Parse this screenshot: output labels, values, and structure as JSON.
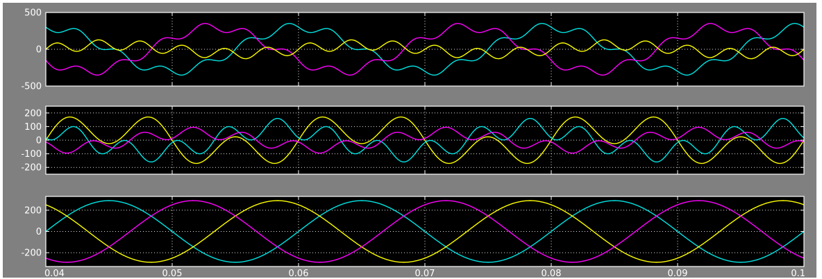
{
  "window": {
    "background": "#808080",
    "axes_background": "#000000",
    "axes_frame": "#ffffff",
    "grid_color": "#ffffff"
  },
  "chart_data": [
    {
      "type": "line",
      "xlim": [
        0.04,
        0.1
      ],
      "ylim": [
        -500,
        500
      ],
      "yticks": [
        500,
        0,
        -500
      ],
      "ytick_labels": [
        "500",
        "0",
        "-500"
      ],
      "xgrid": [
        0.04,
        0.05,
        0.06,
        0.07,
        0.08,
        0.09
      ],
      "grid": true,
      "series": [
        {
          "color": "#00e5e5",
          "amplitude": 300,
          "phase_deg": 90,
          "ripple_amplitude": 60,
          "ripple_harmonic": 6
        },
        {
          "color": "#ff00ff",
          "amplitude": 300,
          "phase_deg": 210,
          "ripple_amplitude": 60,
          "ripple_harmonic": 6
        },
        {
          "color": "#ffff00",
          "amplitude": 60,
          "phase_deg": 0,
          "ripple_amplitude": 70,
          "ripple_harmonic": 6
        }
      ]
    },
    {
      "type": "line",
      "xlim": [
        0.04,
        0.1
      ],
      "ylim": [
        -250,
        250
      ],
      "yticks": [
        200,
        100,
        0,
        -100,
        -200
      ],
      "ytick_labels": [
        "200",
        "100",
        "0",
        "-100",
        "-200"
      ],
      "xgrid": [
        0.04,
        0.05,
        0.06,
        0.07,
        0.08,
        0.09
      ],
      "grid": true,
      "series": [
        {
          "color": "#ffff00",
          "amplitude": 95,
          "phase_deg": 0,
          "ripple_amplitude": 120,
          "ripple_harmonic": 3
        },
        {
          "color": "#00e5e5",
          "amplitude": 90,
          "phase_deg": 120,
          "ripple_amplitude": 70,
          "ripple_harmonic": 5
        },
        {
          "color": "#ff00ff",
          "amplitude": 55,
          "phase_deg": 240,
          "ripple_amplitude": 40,
          "ripple_harmonic": 5
        }
      ]
    },
    {
      "type": "line",
      "xlim": [
        0.04,
        0.1
      ],
      "ylim": [
        -330,
        330
      ],
      "yticks": [
        200,
        0,
        -200
      ],
      "ytick_labels": [
        "200",
        "0",
        "-200"
      ],
      "xticks": [
        0.04,
        0.05,
        0.06,
        0.07,
        0.08,
        0.09,
        0.1
      ],
      "xtick_labels": [
        "0.04",
        "0.05",
        "0.06",
        "0.07",
        "0.08",
        "0.09",
        "0.1"
      ],
      "xgrid": [
        0.04,
        0.05,
        0.06,
        0.07,
        0.08,
        0.09
      ],
      "grid": true,
      "series": [
        {
          "color": "#00e5e5",
          "amplitude": 290,
          "phase_deg": 0,
          "ripple_amplitude": 0,
          "ripple_harmonic": 1
        },
        {
          "color": "#ffff00",
          "amplitude": 290,
          "phase_deg": 120,
          "ripple_amplitude": 0,
          "ripple_harmonic": 1
        },
        {
          "color": "#ff00ff",
          "amplitude": 290,
          "phase_deg": 240,
          "ripple_amplitude": 0,
          "ripple_harmonic": 1
        }
      ]
    }
  ]
}
